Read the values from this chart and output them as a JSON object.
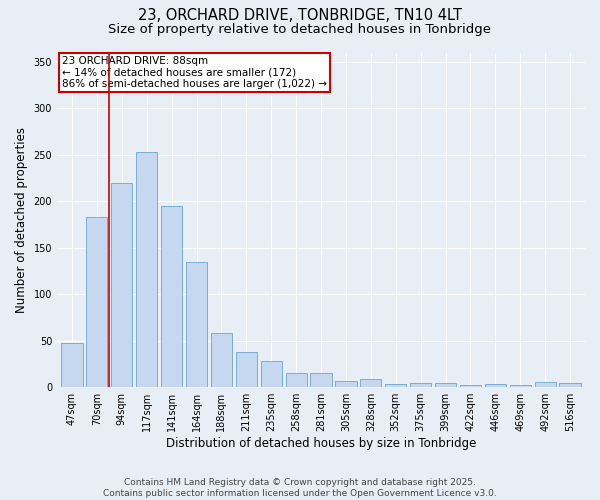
{
  "title_line1": "23, ORCHARD DRIVE, TONBRIDGE, TN10 4LT",
  "title_line2": "Size of property relative to detached houses in Tonbridge",
  "xlabel": "Distribution of detached houses by size in Tonbridge",
  "ylabel": "Number of detached properties",
  "categories": [
    "47sqm",
    "70sqm",
    "94sqm",
    "117sqm",
    "141sqm",
    "164sqm",
    "188sqm",
    "211sqm",
    "235sqm",
    "258sqm",
    "281sqm",
    "305sqm",
    "328sqm",
    "352sqm",
    "375sqm",
    "399sqm",
    "422sqm",
    "446sqm",
    "469sqm",
    "492sqm",
    "516sqm"
  ],
  "values": [
    48,
    183,
    220,
    253,
    195,
    135,
    58,
    38,
    28,
    15,
    15,
    7,
    9,
    3,
    5,
    4,
    2,
    3,
    2,
    6,
    4
  ],
  "bar_color": "#c5d8f0",
  "bar_edge_color": "#7badd4",
  "vline_x": 1.5,
  "vline_color": "#cc0000",
  "vline_label": "23 ORCHARD DRIVE: 88sqm",
  "annotation_line2": "← 14% of detached houses are smaller (172)",
  "annotation_line3": "86% of semi-detached houses are larger (1,022) →",
  "annotation_box_color": "#ffffff",
  "annotation_box_edge": "#cc0000",
  "ylim": [
    0,
    360
  ],
  "yticks": [
    0,
    50,
    100,
    150,
    200,
    250,
    300,
    350
  ],
  "background_color": "#e8eef6",
  "plot_bg_color": "#e8eef6",
  "footer_line1": "Contains HM Land Registry data © Crown copyright and database right 2025.",
  "footer_line2": "Contains public sector information licensed under the Open Government Licence v3.0.",
  "title_fontsize": 10.5,
  "subtitle_fontsize": 9.5,
  "axis_label_fontsize": 8.5,
  "tick_fontsize": 7,
  "annotation_fontsize": 7.5,
  "footer_fontsize": 6.5
}
